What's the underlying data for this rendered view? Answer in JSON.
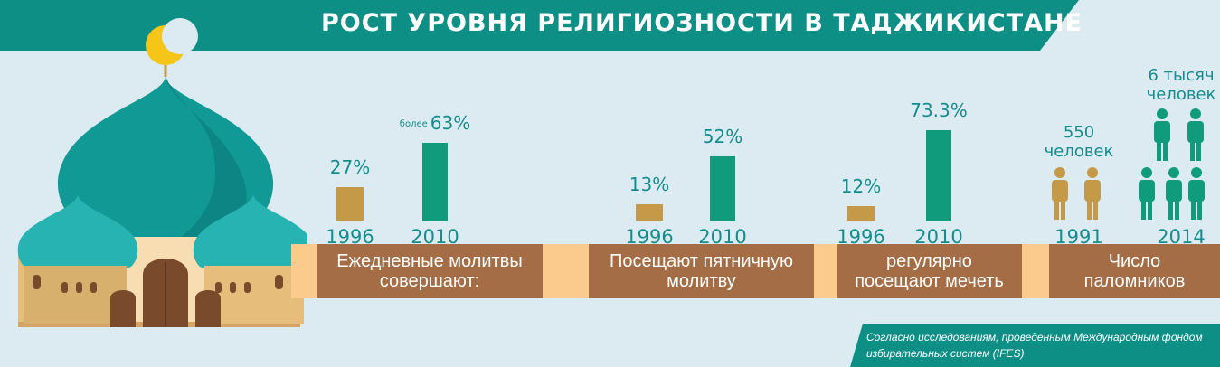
{
  "title": "РОСТ УРОВНЯ РЕЛИГИОЗНОСТИ В ТАДЖИКИСТАНЕ",
  "colors": {
    "background": "#dcebf1",
    "title_band": "#0d8f86",
    "bar_1996": "#c49a48",
    "bar_2010": "#119b7d",
    "panel": "#a46d45",
    "strip": "#fbcb8e",
    "value_text": "#148d8e"
  },
  "chart_data": {
    "type": "bar",
    "groups": [
      {
        "label": "Ежедневные молитвы\nсовершают:",
        "points": [
          {
            "year": "1996",
            "value": 27,
            "value_label": "27%"
          },
          {
            "year": "2010",
            "value": 63,
            "value_label": "63%",
            "prefix": "более"
          }
        ]
      },
      {
        "label": "Посещают пятничную\nмолитву",
        "points": [
          {
            "year": "1996",
            "value": 13,
            "value_label": "13%"
          },
          {
            "year": "2010",
            "value": 52,
            "value_label": "52%"
          }
        ]
      },
      {
        "label": "регулярно\nпосещают мечеть",
        "points": [
          {
            "year": "1996",
            "value": 12,
            "value_label": "12%"
          },
          {
            "year": "2010",
            "value": 73.3,
            "value_label": "73.3%"
          }
        ]
      }
    ],
    "pilgrims": {
      "label": "Число\nпаломников",
      "points": [
        {
          "year": "1991",
          "count_label": "550\nчеловек",
          "value": 550
        },
        {
          "year": "2014",
          "count_label": "6 тысяч\nчеловек",
          "value": 6000
        }
      ]
    }
  },
  "source": "Согласно исследованиям, проведенным Международным фондом избирательных систем (IFES)"
}
